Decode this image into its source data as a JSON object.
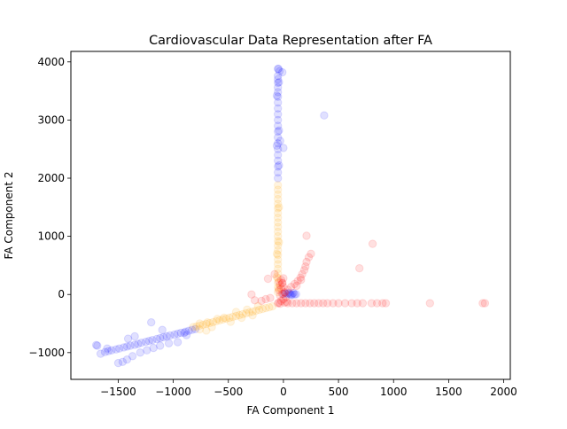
{
  "chart_data": {
    "type": "scatter",
    "title": "Cardiovascular Data Representation after FA",
    "xlabel": "FA Component 1",
    "ylabel": "FA Component 2",
    "xlim": [
      -1930,
      2060
    ],
    "ylim": [
      -1460,
      4180
    ],
    "xticks": [
      -1500,
      -1000,
      -500,
      0,
      500,
      1000,
      1500,
      2000
    ],
    "yticks": [
      -1000,
      0,
      1000,
      2000,
      3000,
      4000
    ],
    "xtick_labels": [
      "−1500",
      "−1000",
      "−500",
      "0",
      "500",
      "1000",
      "1500",
      "2000"
    ],
    "ytick_labels": [
      "−1000",
      "0",
      "1000",
      "2000",
      "3000",
      "4000"
    ],
    "grid": false,
    "legend": "none",
    "marker_alpha": 0.12,
    "series": [
      {
        "color": "#0000ff",
        "points": [
          [
            -1690,
            -880
          ],
          [
            -1660,
            -1020
          ],
          [
            -1620,
            -990
          ],
          [
            -1590,
            -975
          ],
          [
            -1560,
            -960
          ],
          [
            -1520,
            -945
          ],
          [
            -1490,
            -930
          ],
          [
            -1450,
            -910
          ],
          [
            -1420,
            -895
          ],
          [
            -1390,
            -880
          ],
          [
            -1350,
            -865
          ],
          [
            -1320,
            -850
          ],
          [
            -1290,
            -830
          ],
          [
            -1250,
            -815
          ],
          [
            -1220,
            -800
          ],
          [
            -1190,
            -785
          ],
          [
            -1150,
            -765
          ],
          [
            -1120,
            -750
          ],
          [
            -1090,
            -735
          ],
          [
            -1060,
            -720
          ],
          [
            -1030,
            -705
          ],
          [
            -990,
            -690
          ],
          [
            -960,
            -675
          ],
          [
            -930,
            -660
          ],
          [
            -890,
            -640
          ],
          [
            -860,
            -625
          ],
          [
            -830,
            -610
          ],
          [
            -800,
            -595
          ],
          [
            -1700,
            -870
          ],
          [
            -1600,
            -930
          ],
          [
            -1500,
            -1180
          ],
          [
            -1460,
            -1160
          ],
          [
            -1420,
            -1120
          ],
          [
            -1370,
            -1060
          ],
          [
            -1300,
            -1000
          ],
          [
            -1240,
            -960
          ],
          [
            -1180,
            -920
          ],
          [
            -1120,
            -880
          ],
          [
            -1040,
            -840
          ],
          [
            -960,
            -820
          ],
          [
            -880,
            -700
          ],
          [
            -1410,
            -760
          ],
          [
            -1200,
            -480
          ],
          [
            -1350,
            -720
          ],
          [
            -1100,
            -610
          ],
          [
            -900,
            -660
          ],
          [
            -50,
            3880
          ],
          [
            -35,
            3840
          ],
          [
            -10,
            3820
          ],
          [
            -50,
            3760
          ],
          [
            -50,
            3700
          ],
          [
            -50,
            3640
          ],
          [
            -50,
            3560
          ],
          [
            -50,
            3480
          ],
          [
            -50,
            3400
          ],
          [
            -50,
            3300
          ],
          [
            -50,
            3200
          ],
          [
            -50,
            3100
          ],
          [
            -50,
            3000
          ],
          [
            -50,
            2900
          ],
          [
            -50,
            2800
          ],
          [
            -50,
            2700
          ],
          [
            -50,
            2600
          ],
          [
            -50,
            2500
          ],
          [
            -50,
            2400
          ],
          [
            -50,
            2300
          ],
          [
            -50,
            2200
          ],
          [
            -50,
            2100
          ],
          [
            -50,
            2000
          ],
          [
            -45,
            3880
          ],
          [
            -40,
            3650
          ],
          [
            -40,
            2820
          ],
          [
            -40,
            2220
          ],
          [
            -60,
            3420
          ],
          [
            -60,
            2560
          ],
          [
            -30,
            2640
          ],
          [
            0,
            2520
          ],
          [
            370,
            3080
          ],
          [
            0,
            10
          ],
          [
            20,
            15
          ],
          [
            40,
            10
          ],
          [
            60,
            5
          ],
          [
            80,
            0
          ],
          [
            100,
            0
          ],
          [
            115,
            5
          ],
          [
            90,
            25
          ],
          [
            70,
            -10
          ],
          [
            50,
            30
          ]
        ]
      },
      {
        "color": "#ffa500",
        "points": [
          [
            -820,
            -560
          ],
          [
            -790,
            -550
          ],
          [
            -760,
            -535
          ],
          [
            -730,
            -520
          ],
          [
            -700,
            -505
          ],
          [
            -670,
            -490
          ],
          [
            -640,
            -475
          ],
          [
            -610,
            -460
          ],
          [
            -580,
            -445
          ],
          [
            -550,
            -430
          ],
          [
            -520,
            -415
          ],
          [
            -490,
            -400
          ],
          [
            -460,
            -385
          ],
          [
            -430,
            -370
          ],
          [
            -400,
            -355
          ],
          [
            -370,
            -340
          ],
          [
            -340,
            -325
          ],
          [
            -310,
            -310
          ],
          [
            -280,
            -295
          ],
          [
            -250,
            -280
          ],
          [
            -220,
            -265
          ],
          [
            -190,
            -250
          ],
          [
            -160,
            -235
          ],
          [
            -130,
            -220
          ],
          [
            -100,
            -205
          ],
          [
            -760,
            -600
          ],
          [
            -700,
            -620
          ],
          [
            -650,
            -560
          ],
          [
            -600,
            -420
          ],
          [
            -540,
            -400
          ],
          [
            -480,
            -470
          ],
          [
            -430,
            -300
          ],
          [
            -380,
            -400
          ],
          [
            -330,
            -260
          ],
          [
            -280,
            -360
          ],
          [
            -230,
            -200
          ],
          [
            -690,
            -480
          ],
          [
            -760,
            -500
          ],
          [
            -50,
            1880
          ],
          [
            -50,
            1800
          ],
          [
            -50,
            1720
          ],
          [
            -50,
            1640
          ],
          [
            -50,
            1560
          ],
          [
            -50,
            1480
          ],
          [
            -50,
            1400
          ],
          [
            -50,
            1320
          ],
          [
            -50,
            1240
          ],
          [
            -50,
            1160
          ],
          [
            -50,
            1080
          ],
          [
            -50,
            1000
          ],
          [
            -50,
            920
          ],
          [
            -50,
            840
          ],
          [
            -50,
            760
          ],
          [
            -50,
            680
          ],
          [
            -50,
            600
          ],
          [
            -50,
            520
          ],
          [
            -50,
            440
          ],
          [
            -50,
            360
          ],
          [
            -50,
            280
          ],
          [
            -50,
            200
          ],
          [
            -50,
            120
          ],
          [
            -50,
            40
          ],
          [
            -40,
            1500
          ],
          [
            -40,
            900
          ],
          [
            -60,
            700
          ],
          [
            -60,
            300
          ],
          [
            -40,
            100
          ]
        ]
      },
      {
        "color": "#ff0000",
        "points": [
          [
            -40,
            -140
          ],
          [
            -20,
            -110
          ],
          [
            0,
            -80
          ],
          [
            20,
            -50
          ],
          [
            -30,
            -20
          ],
          [
            -10,
            10
          ],
          [
            10,
            40
          ],
          [
            -40,
            70
          ],
          [
            -20,
            100
          ],
          [
            0,
            130
          ],
          [
            -30,
            160
          ],
          [
            -10,
            190
          ],
          [
            -40,
            220
          ],
          [
            -20,
            250
          ],
          [
            0,
            280
          ],
          [
            -30,
            -160
          ],
          [
            -50,
            -150
          ],
          [
            10,
            -140
          ],
          [
            30,
            -130
          ],
          [
            -10,
            200
          ],
          [
            10,
            30
          ],
          [
            40,
            80
          ],
          [
            70,
            130
          ],
          [
            100,
            180
          ],
          [
            130,
            230
          ],
          [
            155,
            290
          ],
          [
            170,
            350
          ],
          [
            190,
            420
          ],
          [
            200,
            480
          ],
          [
            210,
            560
          ],
          [
            230,
            640
          ],
          [
            250,
            700
          ],
          [
            160,
            250
          ],
          [
            120,
            150
          ],
          [
            -200,
            -110
          ],
          [
            -160,
            -80
          ],
          [
            -120,
            -60
          ],
          [
            -260,
            -100
          ],
          [
            -290,
            0
          ],
          [
            -140,
            270
          ],
          [
            -80,
            350
          ],
          [
            210,
            1010
          ],
          [
            810,
            870
          ],
          [
            690,
            450
          ],
          [
            40,
            -150
          ],
          [
            80,
            -150
          ],
          [
            120,
            -150
          ],
          [
            160,
            -150
          ],
          [
            200,
            -150
          ],
          [
            240,
            -150
          ],
          [
            280,
            -150
          ],
          [
            320,
            -150
          ],
          [
            360,
            -150
          ],
          [
            400,
            -150
          ],
          [
            450,
            -150
          ],
          [
            500,
            -150
          ],
          [
            560,
            -150
          ],
          [
            620,
            -150
          ],
          [
            670,
            -150
          ],
          [
            720,
            -150
          ],
          [
            800,
            -150
          ],
          [
            850,
            -150
          ],
          [
            900,
            -150
          ],
          [
            930,
            -150
          ],
          [
            1330,
            -150
          ],
          [
            1810,
            -150
          ],
          [
            1830,
            -150
          ]
        ]
      }
    ]
  }
}
